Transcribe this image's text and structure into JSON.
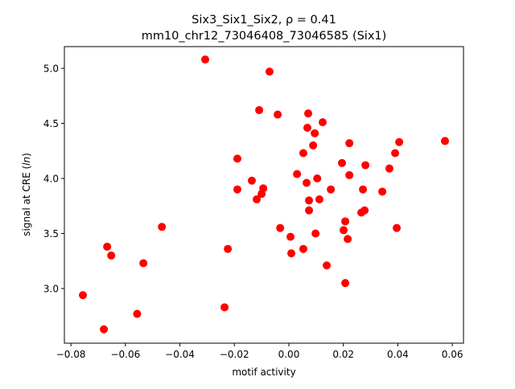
{
  "chart_data": {
    "type": "scatter",
    "title_line1": "Six3_Six1_Six2, ρ = 0.41",
    "title_line2": "mm10_chr12_73046408_73046585 (Six1)",
    "xlabel": "motif activity",
    "ylabel": "signal at CRE (ln)",
    "xlim": [
      -0.0824,
      0.0641
    ],
    "ylim": [
      2.504,
      5.197
    ],
    "xticks": [
      -0.08,
      -0.06,
      -0.04,
      -0.02,
      0.0,
      0.02,
      0.04,
      0.06
    ],
    "xtick_labels": [
      "−0.08",
      "−0.06",
      "−0.04",
      "−0.02",
      "0.00",
      "0.02",
      "0.04",
      "0.06"
    ],
    "yticks": [
      3.0,
      3.5,
      4.0,
      4.5,
      5.0
    ],
    "ytick_labels": [
      "3.0",
      "3.5",
      "4.0",
      "4.5",
      "5.0"
    ],
    "grid": false,
    "marker_color": "#ff0000",
    "points": [
      [
        -0.0756,
        2.94
      ],
      [
        -0.0679,
        2.63
      ],
      [
        -0.0667,
        3.38
      ],
      [
        -0.0652,
        3.3
      ],
      [
        -0.0557,
        2.77
      ],
      [
        -0.0534,
        3.23
      ],
      [
        -0.0466,
        3.56
      ],
      [
        -0.0307,
        5.08
      ],
      [
        -0.0236,
        2.83
      ],
      [
        -0.0224,
        3.36
      ],
      [
        -0.0189,
        4.18
      ],
      [
        -0.0189,
        3.9
      ],
      [
        -0.0136,
        3.98
      ],
      [
        -0.0118,
        3.81
      ],
      [
        -0.0109,
        4.62
      ],
      [
        -0.01,
        3.86
      ],
      [
        -0.0094,
        3.91
      ],
      [
        -0.0071,
        4.97
      ],
      [
        -0.0041,
        4.58
      ],
      [
        -0.0032,
        3.55
      ],
      [
        0.0006,
        3.47
      ],
      [
        0.0009,
        3.32
      ],
      [
        0.003,
        4.04
      ],
      [
        0.0053,
        4.23
      ],
      [
        0.0053,
        3.36
      ],
      [
        0.0065,
        3.96
      ],
      [
        0.0068,
        4.46
      ],
      [
        0.0071,
        4.59
      ],
      [
        0.0074,
        3.8
      ],
      [
        0.0074,
        3.71
      ],
      [
        0.0089,
        4.3
      ],
      [
        0.0095,
        4.41
      ],
      [
        0.0098,
        3.5
      ],
      [
        0.0104,
        4.0
      ],
      [
        0.0112,
        3.81
      ],
      [
        0.0124,
        4.51
      ],
      [
        0.0139,
        3.21
      ],
      [
        0.0154,
        3.9
      ],
      [
        0.0195,
        4.14
      ],
      [
        0.0201,
        3.53
      ],
      [
        0.0207,
        3.61
      ],
      [
        0.0207,
        3.05
      ],
      [
        0.0216,
        3.45
      ],
      [
        0.0222,
        4.03
      ],
      [
        0.0222,
        4.32
      ],
      [
        0.0266,
        3.69
      ],
      [
        0.0272,
        3.9
      ],
      [
        0.0278,
        3.71
      ],
      [
        0.0281,
        4.12
      ],
      [
        0.0343,
        3.88
      ],
      [
        0.0369,
        4.09
      ],
      [
        0.039,
        4.23
      ],
      [
        0.0396,
        3.55
      ],
      [
        0.0405,
        4.33
      ],
      [
        0.0573,
        4.34
      ]
    ]
  }
}
